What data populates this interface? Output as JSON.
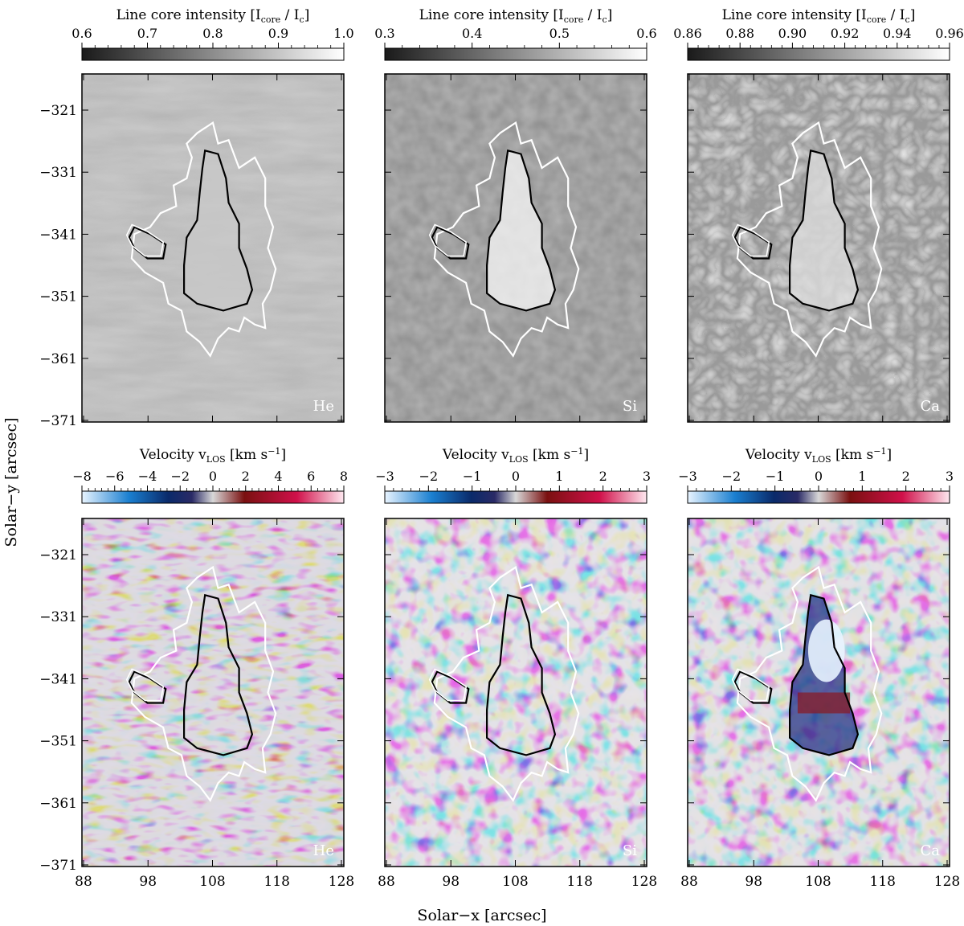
{
  "figure": {
    "xlabel": "Solar−x  [arcsec]",
    "ylabel": "Solar−y  [arcsec]",
    "x_ticks": [
      "88",
      "98",
      "108",
      "118",
      "128"
    ],
    "y_ticks": [
      "−321",
      "−331",
      "−341",
      "−351",
      "−361",
      "−371"
    ]
  },
  "rows": [
    {
      "kind": "intensity",
      "cbar_title": "Line core intensity [I",
      "cbar_title_sub1": "core",
      "cbar_title_mid": " / I",
      "cbar_title_sub2": "c",
      "cbar_title_end": "]",
      "panels": [
        {
          "label": "He",
          "cbar_ticks": [
            "0.6",
            "0.7",
            "0.8",
            "0.9",
            "1.0"
          ]
        },
        {
          "label": "Si",
          "cbar_ticks": [
            "0.3",
            "0.4",
            "0.5",
            "0.6"
          ]
        },
        {
          "label": "Ca",
          "cbar_ticks": [
            "0.86",
            "0.88",
            "0.90",
            "0.92",
            "0.94",
            "0.96"
          ]
        }
      ]
    },
    {
      "kind": "velocity",
      "cbar_title": "Velocity  v",
      "cbar_title_sub1": "LOS",
      "cbar_title_mid": "  [km s",
      "cbar_title_sup": "−1",
      "cbar_title_end": "]",
      "panels": [
        {
          "label": "He",
          "cbar_ticks": [
            "−8",
            "−6",
            "−4",
            "−2",
            "0",
            "2",
            "4",
            "6",
            "8"
          ]
        },
        {
          "label": "Si",
          "cbar_ticks": [
            "−3",
            "−2",
            "−1",
            "0",
            "1",
            "2",
            "3"
          ]
        },
        {
          "label": "Ca",
          "cbar_ticks": [
            "−3",
            "−2",
            "−1",
            "0",
            "1",
            "2",
            "3"
          ]
        }
      ]
    }
  ],
  "colors": {
    "intensity_map": [
      "#1a1a1a",
      "#ffffff"
    ],
    "velocity_map": [
      "#e8f4ff",
      "#1a7fd0",
      "#0a2a6a",
      "#1a1a55",
      "#d8d8d8",
      "#7a1010",
      "#d0104a",
      "#ffe8f0"
    ],
    "contour_outer": "#ffffff",
    "contour_inner": "#000000"
  }
}
